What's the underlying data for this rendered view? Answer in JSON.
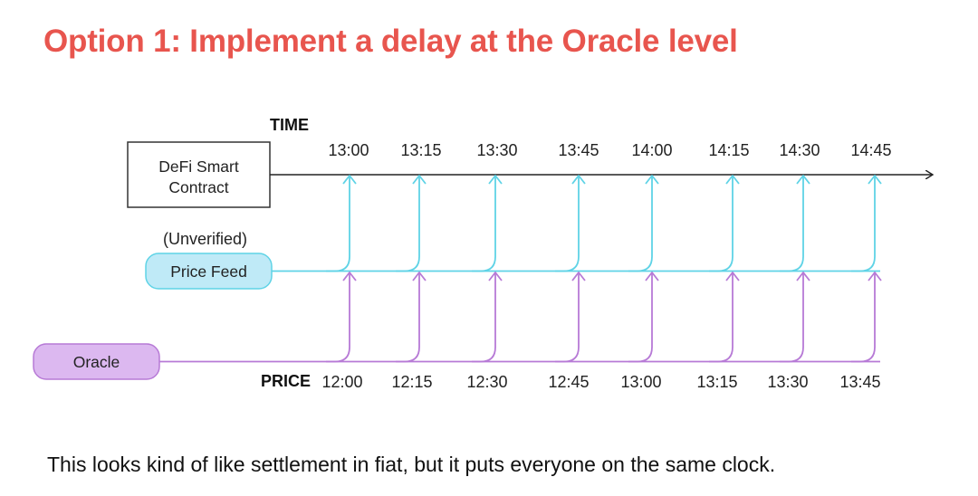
{
  "title": "Option 1: Implement a delay at the Oracle level",
  "caption": "This looks kind of like settlement in fiat, but it puts everyone on the same clock.",
  "labels": {
    "time_axis": "TIME",
    "price_axis": "PRICE",
    "unverified": "(Unverified)"
  },
  "nodes": {
    "contract_line1": "DeFi Smart",
    "contract_line2": "Contract",
    "price_feed": "Price Feed",
    "oracle": "Oracle"
  },
  "time_ticks": [
    "13:00",
    "13:15",
    "13:30",
    "13:45",
    "14:00",
    "14:15",
    "14:30",
    "14:45"
  ],
  "price_ticks": [
    "12:00",
    "12:15",
    "12:30",
    "12:45",
    "13:00",
    "13:15",
    "13:30",
    "13:45"
  ],
  "colors": {
    "title": "#e8554e",
    "feed_line": "#5fd3e6",
    "feed_fill": "#bfeaf7",
    "oracle_line": "#b77ad6",
    "oracle_fill": "#dcb8f0",
    "axis": "#222222"
  }
}
